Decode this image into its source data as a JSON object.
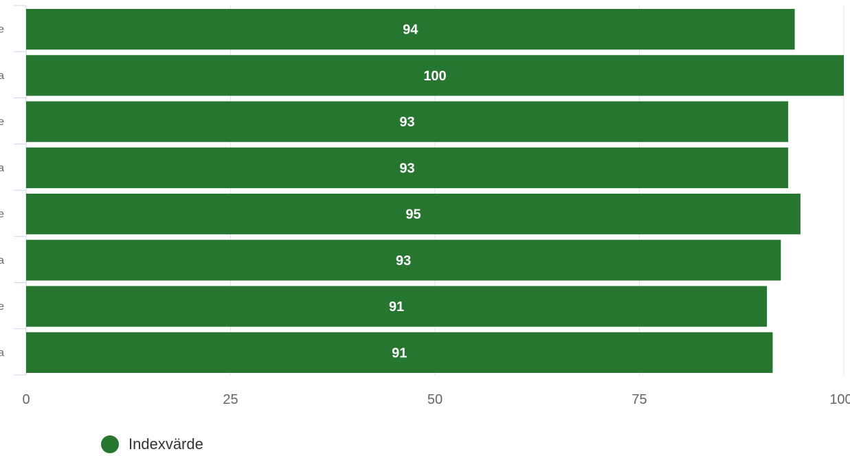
{
  "chart_data": {
    "type": "bar",
    "orientation": "horizontal",
    "categories": [
      "e",
      "a",
      "e",
      "a",
      "e",
      "a",
      "e",
      "a"
    ],
    "series": [
      {
        "name": "Indexvärde",
        "values": [
          94,
          100,
          93,
          93,
          95,
          93,
          91,
          91
        ],
        "plotted_values": [
          94.0,
          100.0,
          93.2,
          93.2,
          94.7,
          92.3,
          90.6,
          91.3
        ]
      }
    ],
    "xlim": [
      0,
      100
    ],
    "xticks": [
      "0",
      "25",
      "50",
      "75",
      "100"
    ],
    "grid": true,
    "legend_position": "bottom-left",
    "xlabel": "",
    "ylabel": "",
    "title": ""
  },
  "colors": {
    "bar": "#267630",
    "grid": "#e6e6e6",
    "axis": "#ccd6eb",
    "tick_text": "#666666",
    "data_label": "#ffffff",
    "legend_text": "#333333"
  }
}
